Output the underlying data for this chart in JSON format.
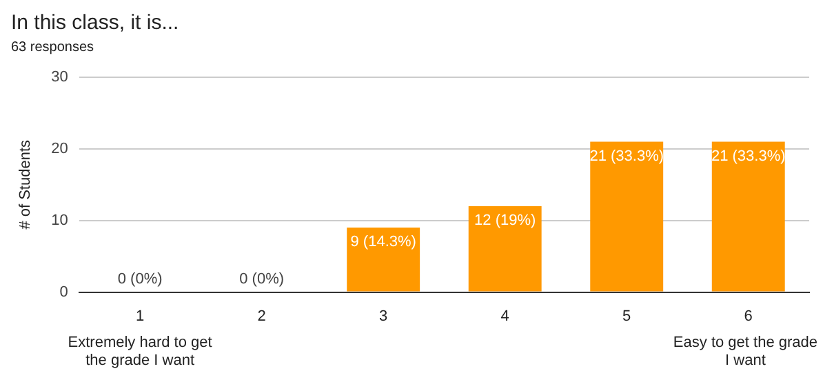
{
  "chart_data": {
    "type": "bar",
    "title": "In this class, it is...",
    "subtitle": "63 responses",
    "ylabel": "# of Students",
    "categories": [
      "1",
      "2",
      "3",
      "4",
      "5",
      "6"
    ],
    "values": [
      0,
      0,
      9,
      12,
      21,
      21
    ],
    "value_labels": [
      "0 (0%)",
      "0 (0%)",
      "9 (14.3%)",
      "12 (19%)",
      "21 (33.3%)",
      "21 (33.3%)"
    ],
    "color": "#ff9900",
    "ylim": [
      0,
      30
    ],
    "yticks": [
      0,
      10,
      20,
      30
    ],
    "grid": "y",
    "legend": false,
    "annotations": [
      "Extremely hard to get the grade I want",
      "Easy to get the grade I want"
    ]
  }
}
